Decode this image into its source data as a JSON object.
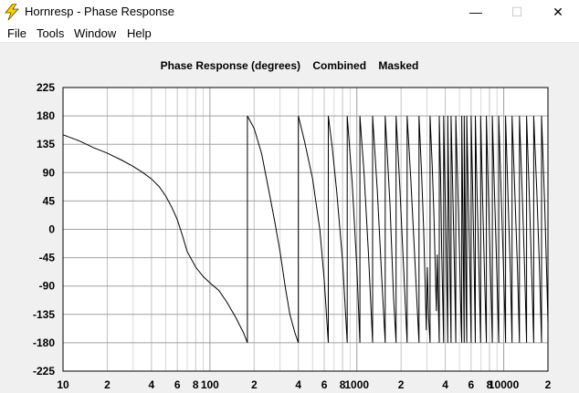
{
  "window": {
    "title": "Hornresp - Phase Response",
    "minimize_glyph": "—",
    "maximize_glyph": "☐",
    "close_glyph": "✕"
  },
  "menu": [
    "File",
    "Tools",
    "Window",
    "Help"
  ],
  "chart_data": {
    "type": "line",
    "title": "Phase Response (degrees)    Combined    Masked",
    "xlabel": "",
    "ylabel": "",
    "x_scale": "log",
    "xlim": [
      10,
      20000
    ],
    "ylim": [
      -225,
      225
    ],
    "y_ticks": [
      225,
      180,
      135,
      90,
      45,
      0,
      -45,
      -90,
      -135,
      -180,
      -225
    ],
    "x_tick_labels": [
      {
        "x": 10,
        "label": "10"
      },
      {
        "x": 20,
        "label": "2"
      },
      {
        "x": 40,
        "label": "4"
      },
      {
        "x": 60,
        "label": "6"
      },
      {
        "x": 80,
        "label": "8"
      },
      {
        "x": 100,
        "label": "100"
      },
      {
        "x": 200,
        "label": "2"
      },
      {
        "x": 400,
        "label": "4"
      },
      {
        "x": 600,
        "label": "6"
      },
      {
        "x": 800,
        "label": "8"
      },
      {
        "x": 1000,
        "label": "1000"
      },
      {
        "x": 2000,
        "label": "2"
      },
      {
        "x": 4000,
        "label": "4"
      },
      {
        "x": 6000,
        "label": "6"
      },
      {
        "x": 8000,
        "label": "8"
      },
      {
        "x": 10000,
        "label": "10000"
      },
      {
        "x": 20000,
        "label": "2"
      }
    ],
    "grid": true,
    "colors": {
      "line": "#000000",
      "plot_bg": "#ffffff",
      "grid_major": "#a0a0a0",
      "grid_minor": "#d8d8d8"
    },
    "series": [
      {
        "points": [
          [
            10,
            150
          ],
          [
            13,
            140
          ],
          [
            16,
            130
          ],
          [
            20,
            121
          ],
          [
            25,
            110
          ],
          [
            30,
            100
          ],
          [
            35,
            90
          ],
          [
            40,
            80
          ],
          [
            45,
            68
          ],
          [
            50,
            53
          ],
          [
            55,
            35
          ],
          [
            60,
            15
          ],
          [
            65,
            -10
          ],
          [
            70,
            -35
          ],
          [
            80,
            -60
          ],
          [
            90,
            -75
          ],
          [
            100,
            -85
          ],
          [
            115,
            -97
          ],
          [
            130,
            -115
          ],
          [
            150,
            -140
          ],
          [
            170,
            -165
          ],
          [
            180,
            -180
          ],
          [
            180,
            180
          ],
          [
            200,
            160
          ],
          [
            225,
            120
          ],
          [
            250,
            65
          ],
          [
            275,
            15
          ],
          [
            300,
            -35
          ],
          [
            325,
            -90
          ],
          [
            350,
            -135
          ],
          [
            380,
            -165
          ],
          [
            400,
            -180
          ],
          [
            400,
            180
          ],
          [
            440,
            140
          ],
          [
            500,
            80
          ],
          [
            560,
            0
          ],
          [
            600,
            -80
          ],
          [
            640,
            -180
          ],
          [
            640,
            180
          ],
          [
            680,
            130
          ],
          [
            730,
            60
          ],
          [
            800,
            -50
          ],
          [
            860,
            -180
          ],
          [
            860,
            180
          ],
          [
            930,
            75
          ],
          [
            1000,
            -60
          ],
          [
            1050,
            -180
          ],
          [
            1050,
            180
          ],
          [
            1120,
            90
          ],
          [
            1200,
            -40
          ],
          [
            1280,
            -180
          ],
          [
            1280,
            180
          ],
          [
            1380,
            60
          ],
          [
            1480,
            -80
          ],
          [
            1560,
            -180
          ],
          [
            1560,
            180
          ],
          [
            1680,
            40
          ],
          [
            1780,
            -110
          ],
          [
            1850,
            -180
          ],
          [
            1850,
            180
          ],
          [
            1960,
            70
          ],
          [
            2080,
            -60
          ],
          [
            2200,
            -180
          ],
          [
            2200,
            180
          ],
          [
            2330,
            80
          ],
          [
            2450,
            -20
          ],
          [
            2570,
            -120
          ],
          [
            2650,
            -180
          ],
          [
            2650,
            180
          ],
          [
            2760,
            90
          ],
          [
            2850,
            0
          ],
          [
            2920,
            -90
          ],
          [
            2970,
            -160
          ],
          [
            3020,
            -60
          ],
          [
            3080,
            -140
          ],
          [
            3150,
            -180
          ],
          [
            3150,
            180
          ],
          [
            3260,
            100
          ],
          [
            3350,
            20
          ],
          [
            3420,
            -60
          ],
          [
            3480,
            -130
          ],
          [
            3530,
            -40
          ],
          [
            3580,
            -110
          ],
          [
            3640,
            -180
          ],
          [
            3640,
            180
          ],
          [
            3720,
            80
          ],
          [
            3780,
            -30
          ],
          [
            3850,
            -120
          ],
          [
            3900,
            -180
          ],
          [
            3900,
            180
          ],
          [
            3990,
            60
          ],
          [
            4080,
            -60
          ],
          [
            4160,
            -180
          ],
          [
            4160,
            180
          ],
          [
            4250,
            20
          ],
          [
            4330,
            -110
          ],
          [
            4380,
            -180
          ],
          [
            4380,
            180
          ],
          [
            4500,
            60
          ],
          [
            4620,
            -60
          ],
          [
            4720,
            -180
          ],
          [
            4720,
            180
          ],
          [
            4860,
            70
          ],
          [
            5000,
            -40
          ],
          [
            5130,
            -150
          ],
          [
            5180,
            -180
          ],
          [
            5180,
            180
          ],
          [
            5260,
            40
          ],
          [
            5330,
            -90
          ],
          [
            5380,
            -180
          ],
          [
            5380,
            180
          ],
          [
            5470,
            30
          ],
          [
            5550,
            -120
          ],
          [
            5600,
            -180
          ],
          [
            5600,
            180
          ],
          [
            5760,
            40
          ],
          [
            5900,
            -80
          ],
          [
            6000,
            -180
          ],
          [
            6000,
            180
          ],
          [
            6150,
            60
          ],
          [
            6290,
            -60
          ],
          [
            6410,
            -180
          ],
          [
            6410,
            180
          ],
          [
            6600,
            50
          ],
          [
            6790,
            -70
          ],
          [
            6960,
            -180
          ],
          [
            6960,
            180
          ],
          [
            7200,
            40
          ],
          [
            7420,
            -80
          ],
          [
            7620,
            -180
          ],
          [
            7620,
            180
          ],
          [
            7880,
            50
          ],
          [
            8130,
            -70
          ],
          [
            8360,
            -180
          ],
          [
            8360,
            180
          ],
          [
            8650,
            60
          ],
          [
            8930,
            -50
          ],
          [
            9190,
            -160
          ],
          [
            9250,
            -180
          ],
          [
            9250,
            180
          ],
          [
            9600,
            60
          ],
          [
            9930,
            -50
          ],
          [
            10250,
            -160
          ],
          [
            10300,
            -180
          ],
          [
            10300,
            180
          ],
          [
            10700,
            50
          ],
          [
            11100,
            -70
          ],
          [
            11400,
            -180
          ],
          [
            11400,
            180
          ],
          [
            11900,
            60
          ],
          [
            12400,
            -60
          ],
          [
            12800,
            -180
          ],
          [
            12800,
            180
          ],
          [
            13400,
            50
          ],
          [
            13900,
            -70
          ],
          [
            14300,
            -180
          ],
          [
            14300,
            180
          ],
          [
            15000,
            40
          ],
          [
            15600,
            -90
          ],
          [
            16000,
            -180
          ],
          [
            16000,
            180
          ],
          [
            16800,
            60
          ],
          [
            17500,
            -60
          ],
          [
            18100,
            -180
          ],
          [
            18100,
            180
          ],
          [
            19000,
            40
          ],
          [
            19600,
            -70
          ],
          [
            20000,
            -150
          ]
        ]
      }
    ]
  }
}
